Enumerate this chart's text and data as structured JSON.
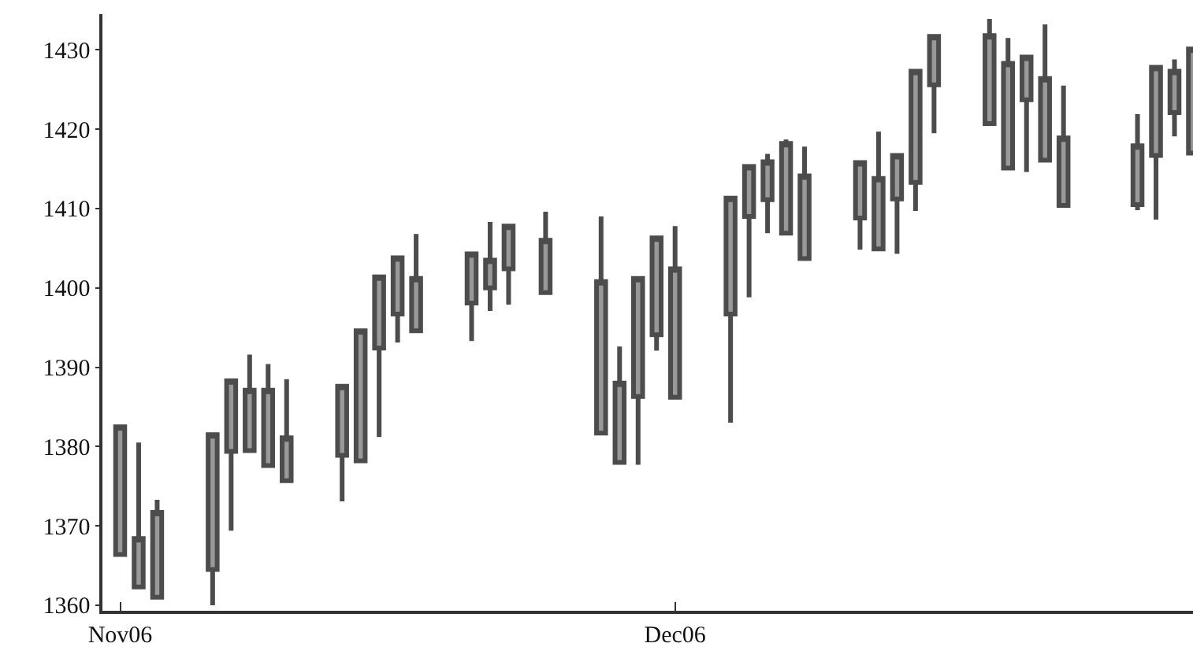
{
  "chart_data": {
    "type": "candlestick",
    "x": [
      "2006-11-01",
      "2006-11-02",
      "2006-11-03",
      "2006-11-06",
      "2006-11-07",
      "2006-11-08",
      "2006-11-09",
      "2006-11-10",
      "2006-11-13",
      "2006-11-14",
      "2006-11-15",
      "2006-11-16",
      "2006-11-17",
      "2006-11-20",
      "2006-11-21",
      "2006-11-22",
      "2006-11-24",
      "2006-11-27",
      "2006-11-28",
      "2006-11-29",
      "2006-11-30",
      "2006-12-01",
      "2006-12-04",
      "2006-12-05",
      "2006-12-06",
      "2006-12-07",
      "2006-12-08",
      "2006-12-11",
      "2006-12-12",
      "2006-12-13",
      "2006-12-14",
      "2006-12-15",
      "2006-12-18",
      "2006-12-19",
      "2006-12-20",
      "2006-12-21",
      "2006-12-22",
      "2006-12-26",
      "2006-12-27",
      "2006-12-28",
      "2006-12-29"
    ],
    "ohlc": [
      [
        1366.4,
        1382.5,
        1366.4,
        1382.5
      ],
      [
        1362.3,
        1380.5,
        1362.3,
        1368.4
      ],
      [
        1361.0,
        1373.3,
        1361.0,
        1371.7
      ],
      [
        1364.5,
        1381.5,
        1360.0,
        1381.5
      ],
      [
        1379.4,
        1388.3,
        1369.4,
        1388.3
      ],
      [
        1379.5,
        1391.6,
        1379.5,
        1387.1
      ],
      [
        1377.6,
        1390.4,
        1377.6,
        1387.1
      ],
      [
        1375.7,
        1388.5,
        1375.7,
        1381.1
      ],
      [
        1378.9,
        1387.6,
        1373.1,
        1387.6
      ],
      [
        1378.2,
        1394.6,
        1378.1,
        1394.6
      ],
      [
        1392.4,
        1401.4,
        1381.2,
        1401.4
      ],
      [
        1396.7,
        1403.8,
        1393.1,
        1403.8
      ],
      [
        1394.6,
        1406.8,
        1394.6,
        1401.2
      ],
      [
        1398.1,
        1404.3,
        1393.3,
        1404.3
      ],
      [
        1400.0,
        1408.3,
        1397.1,
        1403.5
      ],
      [
        1402.4,
        1407.8,
        1397.9,
        1407.8
      ],
      [
        1399.4,
        1409.6,
        1399.4,
        1406.0
      ],
      [
        1381.7,
        1409.0,
        1381.7,
        1400.8
      ],
      [
        1378.0,
        1392.6,
        1378.0,
        1388.0
      ],
      [
        1386.3,
        1401.2,
        1377.7,
        1401.2
      ],
      [
        1394.1,
        1406.3,
        1392.1,
        1406.3
      ],
      [
        1386.2,
        1407.8,
        1386.2,
        1402.4
      ],
      [
        1396.7,
        1411.3,
        1383.0,
        1411.3
      ],
      [
        1409.0,
        1415.3,
        1398.8,
        1415.3
      ],
      [
        1411.1,
        1416.9,
        1406.9,
        1415.9
      ],
      [
        1406.9,
        1418.7,
        1406.9,
        1418.2
      ],
      [
        1403.7,
        1417.8,
        1403.7,
        1414.1
      ],
      [
        1408.8,
        1415.8,
        1404.8,
        1415.8
      ],
      [
        1404.9,
        1419.7,
        1404.9,
        1413.8
      ],
      [
        1411.2,
        1416.7,
        1404.3,
        1416.7
      ],
      [
        1413.3,
        1427.3,
        1409.7,
        1427.3
      ],
      [
        1425.6,
        1431.7,
        1419.5,
        1431.7
      ],
      [
        1420.7,
        1433.9,
        1420.7,
        1431.8
      ],
      [
        1415.1,
        1431.5,
        1415.1,
        1428.3
      ],
      [
        1423.7,
        1429.1,
        1414.6,
        1429.1
      ],
      [
        1416.1,
        1433.2,
        1416.1,
        1426.4
      ],
      [
        1410.4,
        1425.5,
        1410.4,
        1418.9
      ],
      [
        1410.5,
        1421.9,
        1409.8,
        1417.9
      ],
      [
        1416.7,
        1427.8,
        1408.6,
        1427.8
      ],
      [
        1422.1,
        1428.8,
        1419.1,
        1427.3
      ],
      [
        1417.0,
        1430.1,
        1417.0,
        1430.1
      ]
    ],
    "color": "#999999",
    "xlim": [
      "2006-10-31T01:00",
      "2006-12-29"
    ],
    "xticks": [
      {
        "value": "2006-11-01",
        "label": "Nov06"
      },
      {
        "value": "2006-12-01",
        "label": "Dec06"
      }
    ],
    "ylim": [
      1359.3,
      1434.5
    ],
    "yticks": [
      1360,
      1370,
      1380,
      1390,
      1400,
      1410,
      1420,
      1430
    ],
    "legend": false
  }
}
